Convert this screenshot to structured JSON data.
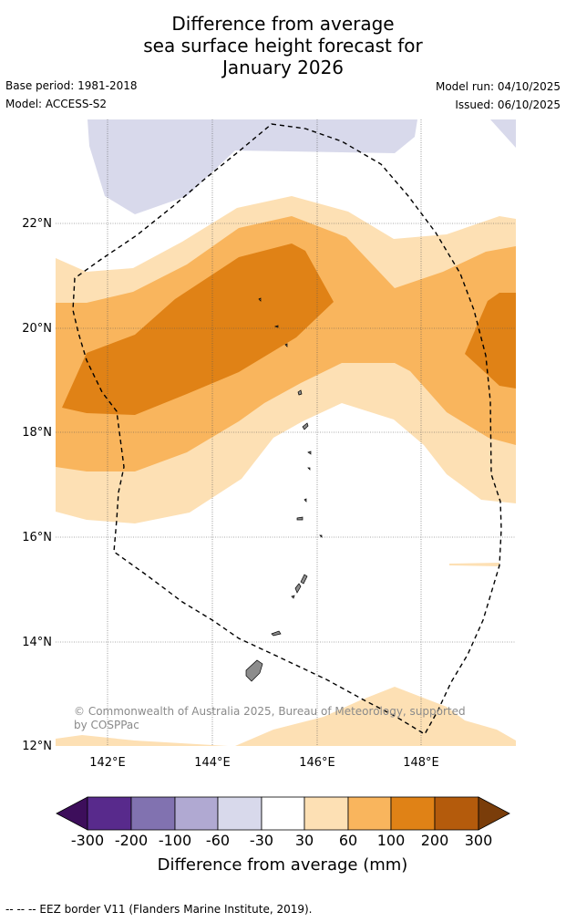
{
  "title": {
    "line1": "Difference from average",
    "line2": "sea surface height forecast for",
    "line3": "January 2026"
  },
  "meta": {
    "base_period": "Base period: 1981-2018",
    "model": "Model: ACCESS-S2",
    "model_run": "Model run: 04/10/2025",
    "issued": "Issued: 06/10/2025"
  },
  "map": {
    "lat_labels": [
      "22°N",
      "20°N",
      "18°N",
      "16°N",
      "14°N",
      "12°N"
    ],
    "lon_labels": [
      "142°E",
      "144°E",
      "146°E",
      "148°E"
    ],
    "copyright_line1": "© Commonwealth of Australia 2025, Bureau of Meteorology, supported",
    "copyright_line2": "by COSPPac"
  },
  "colorbar": {
    "title": "Difference from average (mm)",
    "tick_labels": [
      "-300",
      "-200",
      "-100",
      "-60",
      "-30",
      "30",
      "60",
      "100",
      "200",
      "300"
    ],
    "colors": [
      "#3d0e5b",
      "#582a8c",
      "#8172b0",
      "#b0a9d2",
      "#d8d9eb",
      "#ffffff",
      "#fde0b4",
      "#f9b55d",
      "#e08216",
      "#b45b0c",
      "#7a3d0a"
    ]
  },
  "footer": "--  --  -- EEZ border V11 (Flanders Marine Institute, 2019)."
}
